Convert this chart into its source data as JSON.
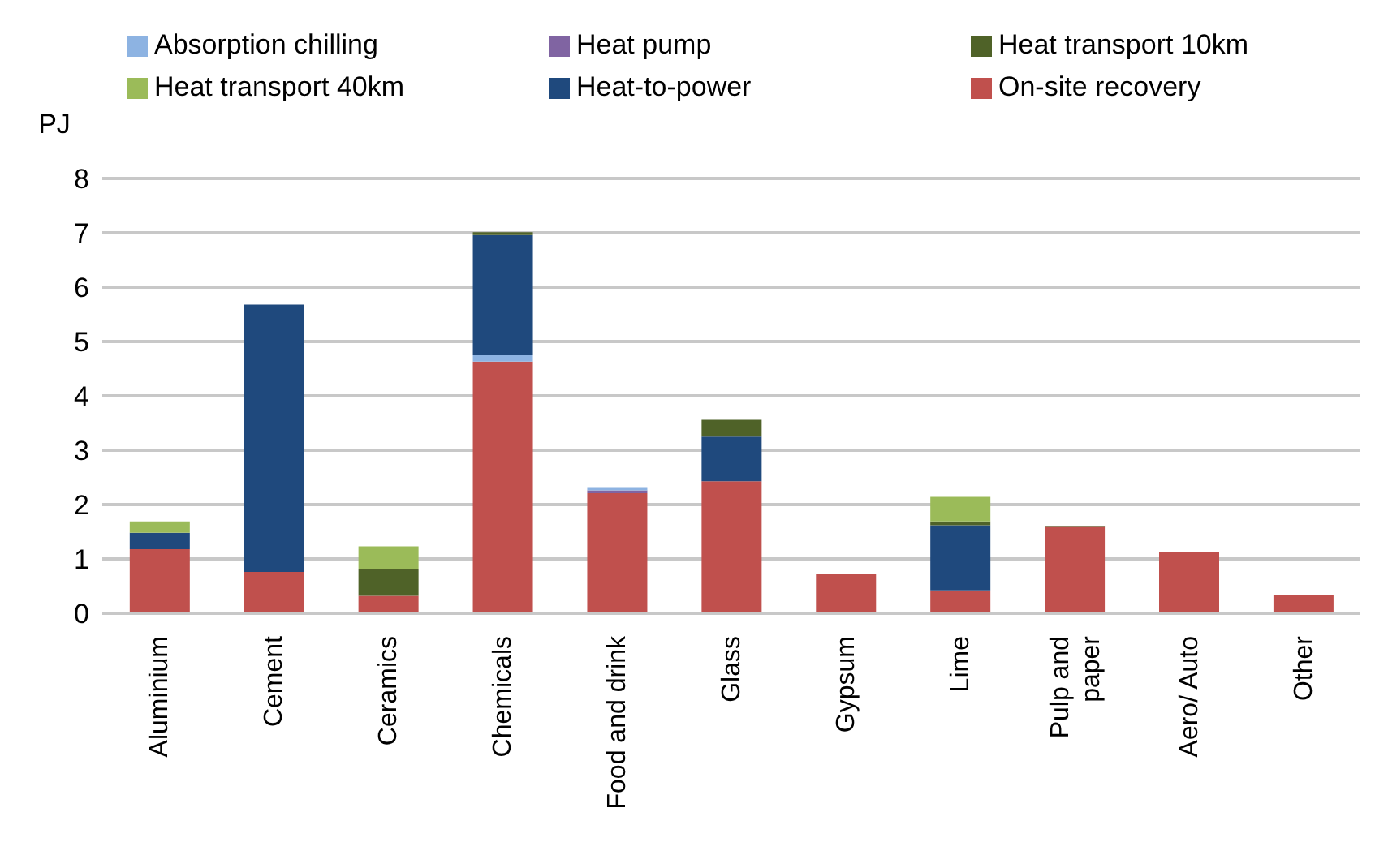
{
  "chart_data": {
    "type": "bar",
    "stacked": true,
    "ylabel": "PJ",
    "categories": [
      "Aluminium",
      "Cement",
      "Ceramics",
      "Chemicals",
      "Food and drink",
      "Glass",
      "Gypsum",
      "Lime",
      "Pulp and paper",
      "Aero/ Auto",
      "Other"
    ],
    "series": [
      {
        "name": "On-site recovery",
        "color": "#c0504d",
        "values": [
          1.18,
          0.76,
          0.32,
          4.63,
          2.21,
          2.43,
          0.73,
          0.42,
          1.59,
          1.12,
          0.34
        ]
      },
      {
        "name": "Heat pump",
        "color": "#8064a2",
        "values": [
          0,
          0,
          0,
          0,
          0.05,
          0,
          0,
          0,
          0,
          0,
          0
        ]
      },
      {
        "name": "Absorption chilling",
        "color": "#8db3e2",
        "values": [
          0,
          0,
          0,
          0.13,
          0.06,
          0,
          0,
          0,
          0,
          0,
          0
        ]
      },
      {
        "name": "Heat-to-power",
        "color": "#1f497d",
        "values": [
          0.3,
          4.92,
          0,
          2.2,
          0,
          0.82,
          0,
          1.2,
          0,
          0,
          0
        ]
      },
      {
        "name": "Heat transport 10km",
        "color": "#4f6228",
        "values": [
          0,
          0,
          0.5,
          0.05,
          0,
          0.31,
          0,
          0.07,
          0.02,
          0,
          0
        ]
      },
      {
        "name": "Heat transport 40km",
        "color": "#9bbb59",
        "values": [
          0.21,
          0,
          0.41,
          0,
          0,
          0,
          0,
          0.45,
          0,
          0,
          0
        ]
      }
    ],
    "ylim": [
      0,
      8
    ],
    "yticks": [
      0,
      1,
      2,
      3,
      4,
      5,
      6,
      7,
      8
    ],
    "grid": "y",
    "legend": "top"
  }
}
